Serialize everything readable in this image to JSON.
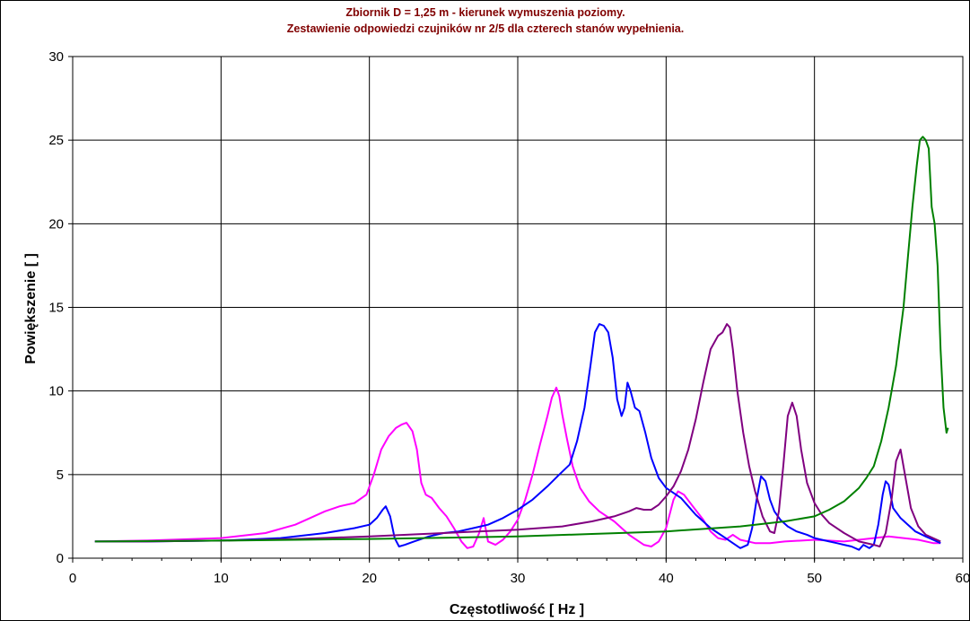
{
  "chart_data": {
    "type": "line",
    "title_lines": [
      "Zbiornik D = 1,25 m - kierunek wymuszenia poziomy.",
      "Zestawienie odpowiedzi czujników nr 2/5 dla czterech stanów wypełnienia."
    ],
    "xlabel": "Częstotliwość [ Hz ]",
    "ylabel": "Powiększenie [ ]",
    "xlim": [
      0,
      60
    ],
    "ylim": [
      0,
      30
    ],
    "xticks": [
      "0",
      "10",
      "20",
      "30",
      "40",
      "50",
      "60"
    ],
    "yticks": [
      "0",
      "5",
      "10",
      "15",
      "20",
      "25",
      "30"
    ],
    "grid": true,
    "legend": "none",
    "series": [
      {
        "color": "#ff00ff",
        "x": [
          1.5,
          5,
          10,
          13,
          15,
          16,
          17,
          18,
          19,
          19.8,
          20.3,
          20.8,
          21.3,
          21.8,
          22.2,
          22.5,
          22.9,
          23.2,
          23.5,
          23.8,
          24.2,
          24.7,
          25.2,
          25.7,
          26.2,
          26.6,
          27.0,
          27.4,
          27.7,
          28.0,
          28.5,
          29.0,
          29.5,
          30.0,
          30.5,
          31.0,
          31.5,
          32.0,
          32.3,
          32.6,
          32.8,
          33.0,
          33.3,
          33.7,
          34.2,
          34.8,
          35.5,
          36.5,
          37.5,
          38.5,
          39.0,
          39.5,
          40.0,
          40.5,
          40.8,
          41.2,
          41.8,
          42.5,
          43.0,
          43.5,
          44.0,
          44.5,
          45.0,
          46.0,
          47.0,
          48.0,
          50.0,
          52.0,
          54.0,
          55.0,
          56.0,
          57.0,
          58.0,
          58.5
        ],
        "y": [
          1.0,
          1.05,
          1.2,
          1.5,
          2.0,
          2.4,
          2.8,
          3.1,
          3.3,
          3.8,
          5.0,
          6.5,
          7.3,
          7.8,
          8.0,
          8.1,
          7.6,
          6.5,
          4.5,
          3.8,
          3.6,
          3.0,
          2.5,
          1.8,
          1.0,
          0.6,
          0.7,
          1.5,
          2.4,
          1.0,
          0.8,
          1.1,
          1.6,
          2.3,
          3.5,
          5.0,
          6.8,
          8.5,
          9.6,
          10.2,
          9.7,
          8.6,
          7.2,
          5.5,
          4.2,
          3.4,
          2.8,
          2.2,
          1.4,
          0.8,
          0.7,
          1.0,
          1.8,
          3.5,
          4.0,
          3.8,
          3.1,
          2.3,
          1.6,
          1.2,
          1.1,
          1.4,
          1.1,
          0.9,
          0.9,
          1.0,
          1.1,
          1.0,
          1.2,
          1.3,
          1.2,
          1.1,
          0.9,
          0.9
        ]
      },
      {
        "color": "#0000ff",
        "x": [
          1.5,
          5,
          10,
          14,
          17,
          19,
          20.0,
          20.5,
          20.9,
          21.1,
          21.4,
          21.7,
          22.0,
          22.4,
          23.0,
          24.0,
          25.0,
          26.0,
          27.0,
          28.0,
          29.0,
          30.0,
          31.0,
          32.0,
          32.8,
          33.5,
          34.0,
          34.5,
          34.9,
          35.2,
          35.5,
          35.8,
          36.1,
          36.4,
          36.7,
          37.0,
          37.2,
          37.4,
          37.6,
          37.9,
          38.2,
          38.6,
          39.0,
          39.5,
          40.0,
          40.5,
          41.0,
          41.5,
          42.0,
          42.5,
          43.0,
          43.5,
          44.0,
          44.5,
          45.0,
          45.5,
          45.8,
          46.1,
          46.4,
          46.7,
          47.0,
          47.3,
          47.7,
          48.2,
          48.8,
          49.5,
          50.0,
          50.5,
          51.0,
          51.5,
          52.0,
          52.5,
          53.0,
          53.3,
          53.7,
          54.0,
          54.3,
          54.6,
          54.8,
          55.0,
          55.3,
          55.8,
          56.3,
          56.8,
          57.5,
          58.0,
          58.5
        ],
        "y": [
          1.0,
          1.0,
          1.05,
          1.2,
          1.5,
          1.8,
          2.0,
          2.4,
          2.9,
          3.1,
          2.5,
          1.2,
          0.7,
          0.8,
          1.0,
          1.3,
          1.5,
          1.6,
          1.8,
          2.0,
          2.4,
          2.9,
          3.5,
          4.3,
          5.0,
          5.6,
          7.0,
          9.0,
          11.5,
          13.5,
          14.0,
          13.9,
          13.5,
          12.0,
          9.5,
          8.5,
          9.0,
          10.5,
          10.0,
          9.0,
          8.8,
          7.5,
          6.0,
          4.8,
          4.2,
          3.9,
          3.6,
          3.1,
          2.6,
          2.2,
          1.8,
          1.5,
          1.2,
          0.9,
          0.6,
          0.8,
          1.8,
          3.5,
          4.9,
          4.6,
          3.5,
          2.8,
          2.3,
          1.9,
          1.6,
          1.4,
          1.2,
          1.1,
          1.0,
          0.9,
          0.8,
          0.7,
          0.5,
          0.8,
          0.6,
          0.8,
          2.0,
          3.8,
          4.6,
          4.4,
          3.0,
          2.4,
          2.0,
          1.6,
          1.3,
          1.1,
          0.9
        ]
      },
      {
        "color": "#800080",
        "x": [
          1.5,
          5,
          10,
          15,
          20,
          25,
          30,
          33,
          35,
          36.5,
          37.5,
          38.0,
          38.5,
          39.0,
          39.5,
          40.0,
          40.5,
          41.0,
          41.5,
          42.0,
          42.5,
          43.0,
          43.5,
          43.8,
          44.1,
          44.3,
          44.5,
          44.8,
          45.2,
          45.6,
          46.0,
          46.5,
          47.0,
          47.3,
          47.6,
          47.9,
          48.2,
          48.5,
          48.8,
          49.1,
          49.5,
          50.0,
          50.5,
          51.0,
          52.0,
          53.0,
          54.0,
          54.4,
          54.8,
          55.2,
          55.5,
          55.8,
          56.1,
          56.5,
          57.0,
          57.5,
          58.0,
          58.5
        ],
        "y": [
          1.0,
          1.0,
          1.05,
          1.15,
          1.3,
          1.5,
          1.7,
          1.9,
          2.2,
          2.5,
          2.8,
          3.0,
          2.9,
          2.9,
          3.2,
          3.7,
          4.3,
          5.2,
          6.5,
          8.3,
          10.5,
          12.5,
          13.3,
          13.5,
          14.0,
          13.8,
          12.5,
          10.0,
          7.5,
          5.5,
          4.0,
          2.5,
          1.6,
          1.5,
          2.8,
          5.5,
          8.5,
          9.3,
          8.5,
          6.5,
          4.5,
          3.3,
          2.6,
          2.1,
          1.5,
          1.0,
          0.8,
          0.7,
          1.5,
          3.5,
          5.8,
          6.5,
          5.0,
          3.0,
          1.9,
          1.4,
          1.2,
          1.0
        ]
      },
      {
        "color": "#008000",
        "x": [
          1.5,
          10,
          20,
          30,
          35,
          40,
          45,
          48,
          50,
          51,
          52,
          53,
          53.5,
          54,
          54.5,
          55,
          55.5,
          56.0,
          56.3,
          56.6,
          56.9,
          57.1,
          57.3,
          57.5,
          57.7,
          57.9,
          58.1,
          58.3,
          58.5,
          58.7,
          58.9,
          59.0
        ],
        "y": [
          1.0,
          1.05,
          1.15,
          1.3,
          1.45,
          1.6,
          1.9,
          2.2,
          2.5,
          2.9,
          3.4,
          4.2,
          4.8,
          5.5,
          7.0,
          9.0,
          11.5,
          15.0,
          18.0,
          21.0,
          23.5,
          25.0,
          25.2,
          25.0,
          24.5,
          21.0,
          20.0,
          17.5,
          12.5,
          9.0,
          7.5,
          7.8
        ]
      }
    ]
  }
}
